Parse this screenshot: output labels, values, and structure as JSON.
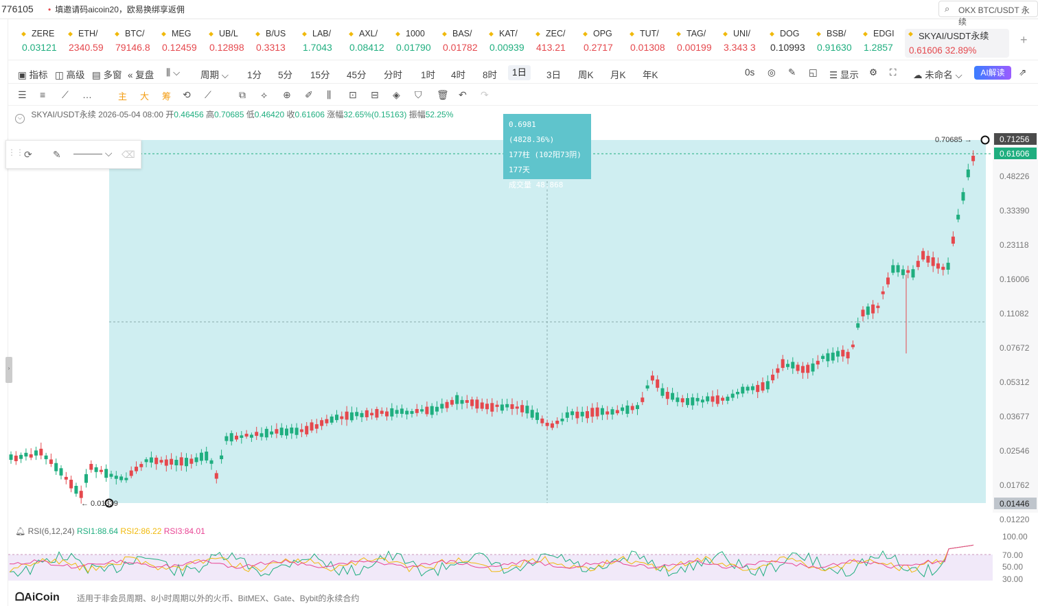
{
  "topbar": {
    "left_number": "776105",
    "notice": "填邀请码aicoin20，欧易换绑享返佣",
    "search_text": "OKX BTC/USDT 永续"
  },
  "tickers": [
    {
      "sym": "ZERE",
      "price": "0.03121",
      "dir": "up"
    },
    {
      "sym": "ETH/",
      "price": "2340.59",
      "dir": "dn"
    },
    {
      "sym": "BTC/",
      "price": "79146.8",
      "dir": "dn"
    },
    {
      "sym": "MEG",
      "price": "0.12459",
      "dir": "dn"
    },
    {
      "sym": "UB/L",
      "price": "0.12898",
      "dir": "dn"
    },
    {
      "sym": "B/US",
      "price": "0.3313",
      "dir": "dn"
    },
    {
      "sym": "LAB/",
      "price": "1.7043",
      "dir": "up"
    },
    {
      "sym": "AXL/",
      "price": "0.08412",
      "dir": "up"
    },
    {
      "sym": "1000",
      "price": "0.01790",
      "dir": "up"
    },
    {
      "sym": "BAS/",
      "price": "0.01782",
      "dir": "dn"
    },
    {
      "sym": "KAT/",
      "price": "0.00939",
      "dir": "up"
    },
    {
      "sym": "ZEC/",
      "price": "413.21",
      "dir": "dn"
    },
    {
      "sym": "OPG",
      "price": "0.2717",
      "dir": "dn"
    },
    {
      "sym": "TUT/",
      "price": "0.01308",
      "dir": "dn"
    },
    {
      "sym": "TAG/",
      "price": "0.00199",
      "dir": "dn"
    },
    {
      "sym": "UNI/",
      "price": "3.343 3",
      "dir": "dn"
    },
    {
      "sym": "DOG",
      "price": "0.10993",
      "dir": "neu"
    },
    {
      "sym": "BSB/",
      "price": "0.91630",
      "dir": "up"
    },
    {
      "sym": "EDGI",
      "price": "1.2857",
      "dir": "up"
    }
  ],
  "active_ticker": {
    "sym": "SKYAI/USDT永续",
    "price": "0.61606",
    "change": "32.89%"
  },
  "toolbar1": {
    "indicators": "指标",
    "advanced": "高级",
    "multi": "多窗",
    "replay": "复盘",
    "period": "周期",
    "intervals": [
      "1分",
      "5分",
      "15分",
      "45分",
      "分时",
      "1时",
      "4时",
      "8时",
      "1日",
      "3日",
      "周K",
      "月K",
      "年K"
    ],
    "selected_interval": "1日",
    "countdown": "0s",
    "display": "显示",
    "unnamed": "未命名",
    "ai": "AI解读"
  },
  "toolbar2": {
    "main": "主",
    "big": "大",
    "chip": "筹"
  },
  "legend": {
    "pair": "SKYAI/USDT永续",
    "date": "2026-05-04 08:00",
    "open_label": "开",
    "open": "0.46456",
    "high_label": "高",
    "high": "0.70685",
    "low_label": "低",
    "low": "0.46420",
    "close_label": "收",
    "close": "0.61606",
    "chg_label": "涨幅",
    "chg": "32.65%(0.15163)",
    "amp_label": "振幅",
    "amp": "52.25%"
  },
  "tooltip": {
    "line1": "0.6981 (4828.36%)",
    "line2": "177柱 (102阳73阴)",
    "line3": "177天",
    "line4": "成交量 48.868"
  },
  "annotations": {
    "high_marker": "0.70685 →",
    "low_marker": "← 0.01339"
  },
  "price_axis": {
    "labels": [
      "0.71256",
      "0.61606",
      "0.48226",
      "0.33390",
      "0.23118",
      "0.16006",
      "0.11082",
      "0.07672",
      "0.05312",
      "0.03677",
      "0.02546",
      "0.01762",
      "0.01446",
      "0.01220"
    ],
    "highlight_top": "0.71256",
    "current": "0.61606",
    "bottom_box": "0.01446"
  },
  "rsi": {
    "label": "RSI(6,12,24)",
    "rsi1": "RSI1:88.64",
    "rsi2": "RSI2:86.22",
    "rsi3": "RSI3:84.01",
    "axis": [
      "100.00",
      "70.00",
      "50.00",
      "30.00"
    ],
    "colors": {
      "rsi1": "#1fae7f",
      "rsi2": "#f0b90b",
      "rsi3": "#e84393"
    }
  },
  "footer": {
    "logo": "AiCoin",
    "note": "适用于非会员周期、8小时周期以外的火币、BitMEX、Gate、Bybit的永续合约"
  },
  "colors": {
    "up": "#1fae7f",
    "down": "#e5484d",
    "measure_fill": "#bfe8ec",
    "accent": "#3b7dff"
  }
}
